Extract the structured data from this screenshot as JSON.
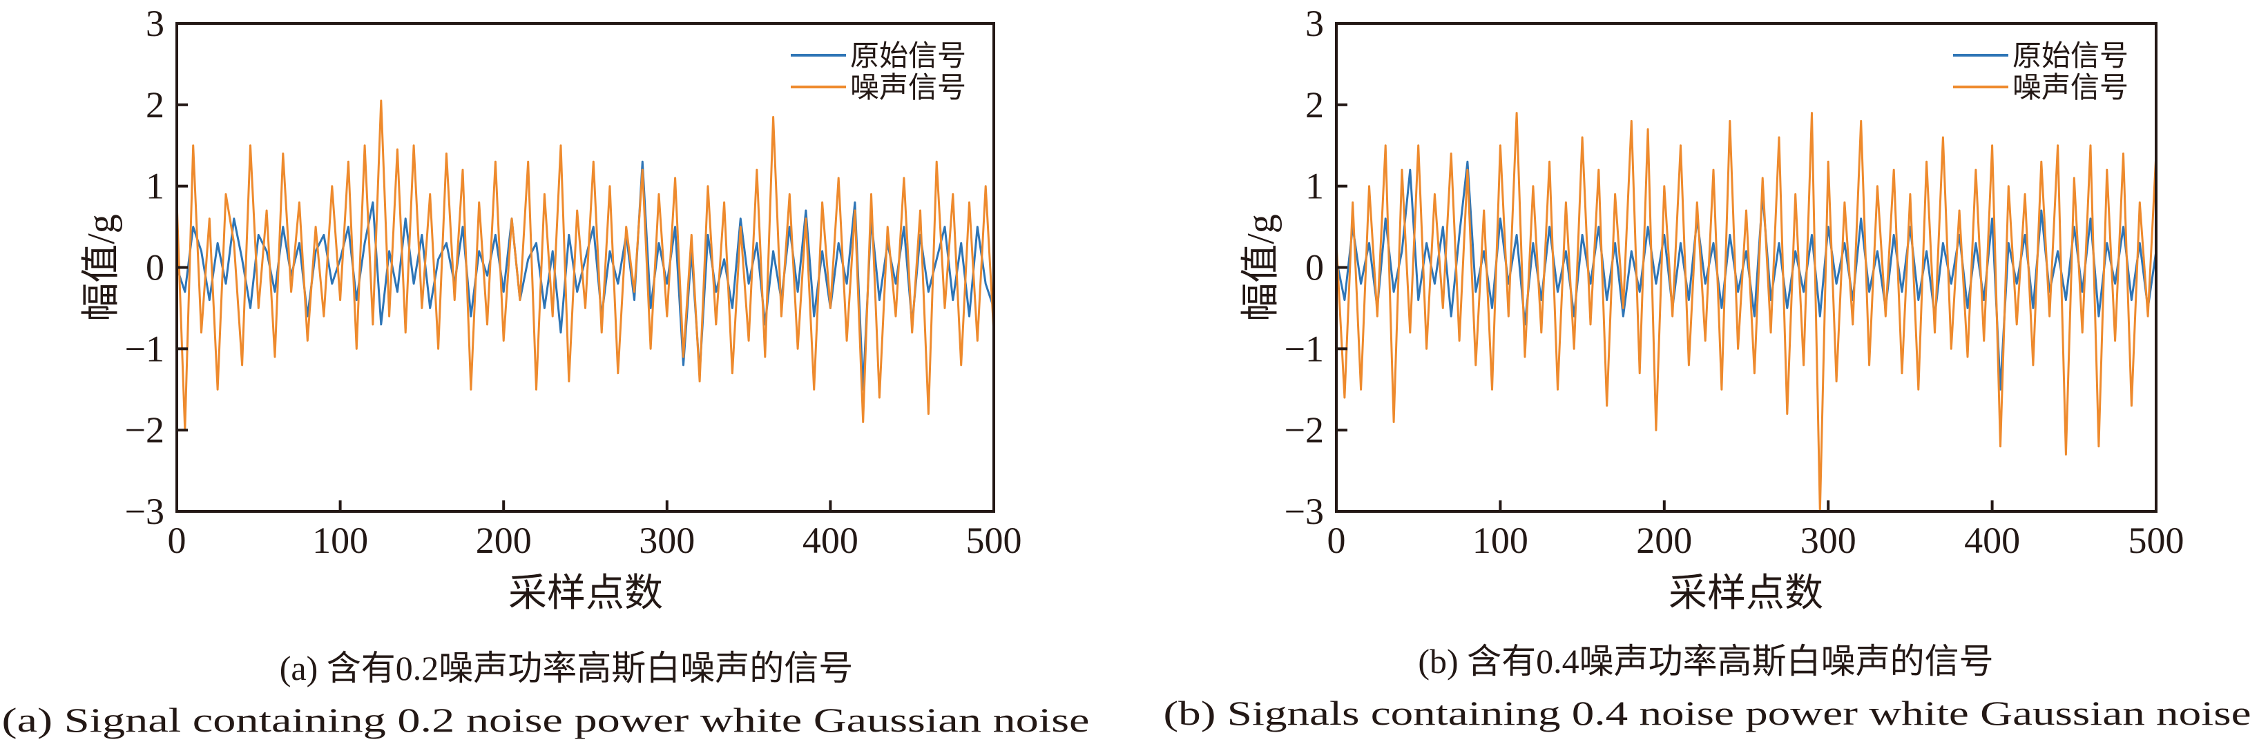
{
  "chart_data": [
    {
      "type": "line",
      "panel": "a",
      "title": "",
      "xlabel": "采样点数",
      "ylabel": "幅值/g",
      "xlim": [
        0,
        500
      ],
      "ylim": [
        -3,
        3
      ],
      "xticks": [
        "0",
        "100",
        "200",
        "300",
        "400",
        "500"
      ],
      "yticks": [
        "3",
        "2",
        "1",
        "0",
        "−1",
        "−2",
        "−3"
      ],
      "legend_position": "top-right",
      "caption_cn": "(a) 含有0.2噪声功率高斯白噪声的信号",
      "caption_en": "(a) Signal containing 0.2 noise power white Gaussian noise",
      "series": [
        {
          "name": "原始信号",
          "color": "#2e75b6",
          "values": [
            0,
            -0.3,
            0.5,
            0.2,
            -0.4,
            0.3,
            -0.2,
            0.6,
            0.1,
            -0.5,
            0.4,
            0.2,
            -0.3,
            0.5,
            -0.1,
            0.3,
            -0.6,
            0.2,
            0.4,
            -0.2,
            0.1,
            0.5,
            -0.4,
            0.3,
            0.8,
            -0.7,
            0.2,
            -0.3,
            0.6,
            -0.2,
            0.4,
            -0.5,
            0.1,
            0.3,
            -0.2,
            0.5,
            -0.6,
            0.2,
            -0.1,
            0.4,
            -0.3,
            0.6,
            -0.4,
            0.1,
            0.3,
            -0.5,
            0.2,
            -0.8,
            0.4,
            -0.3,
            0.1,
            0.5,
            -0.6,
            0.2,
            -0.2,
            0.4,
            -0.4,
            1.3,
            -0.5,
            0.3,
            -0.2,
            0.5,
            -1.2,
            0.2,
            -1.3,
            0.4,
            -0.3,
            0.1,
            -0.5,
            0.6,
            -0.2,
            0.3,
            -0.7,
            0.2,
            -0.4,
            0.5,
            -0.3,
            0.7,
            -0.6,
            0.2,
            -0.5,
            0.3,
            -0.2,
            0.8,
            -1.5,
            0.6,
            -0.4,
            0.3,
            -0.2,
            0.5,
            -0.7,
            0.4,
            -0.3,
            0.1,
            0.5,
            -0.4,
            0.3,
            -0.6,
            0.5,
            -0.2,
            -0.5
          ]
        },
        {
          "name": "噪声信号",
          "color": "#ee8a2d",
          "values": [
            0.8,
            -2.0,
            1.5,
            -0.8,
            0.6,
            -1.5,
            0.9,
            0.3,
            -1.2,
            1.5,
            -0.5,
            0.7,
            -1.1,
            1.4,
            -0.3,
            0.8,
            -0.9,
            0.5,
            -0.6,
            1.0,
            -0.4,
            1.3,
            -1.0,
            1.5,
            -0.7,
            2.05,
            -0.6,
            1.45,
            -0.8,
            1.5,
            -0.5,
            0.9,
            -1.0,
            1.4,
            -0.4,
            1.2,
            -1.5,
            0.8,
            -0.7,
            1.3,
            -0.9,
            0.6,
            -0.4,
            1.3,
            -1.5,
            0.9,
            -0.6,
            1.5,
            -1.4,
            0.7,
            -0.5,
            1.3,
            -0.8,
            1.0,
            -1.3,
            0.5,
            -0.3,
            1.2,
            -1.0,
            0.9,
            -0.6,
            1.1,
            -1.1,
            0.4,
            -1.4,
            1.0,
            -0.7,
            0.8,
            -1.3,
            0.5,
            -0.9,
            1.2,
            -1.1,
            1.85,
            -0.6,
            0.9,
            -1.0,
            0.6,
            -1.5,
            0.8,
            -0.5,
            1.1,
            -0.9,
            0.7,
            -1.9,
            0.9,
            -1.6,
            0.5,
            -0.6,
            1.1,
            -0.8,
            0.7,
            -1.8,
            1.3,
            -0.5,
            0.9,
            -1.2,
            0.8,
            -0.9,
            1.0,
            -0.8
          ]
        }
      ]
    },
    {
      "type": "line",
      "panel": "b",
      "title": "",
      "xlabel": "采样点数",
      "ylabel": "幅值/g",
      "xlim": [
        0,
        500
      ],
      "ylim": [
        -3,
        3
      ],
      "xticks": [
        "0",
        "100",
        "200",
        "300",
        "400",
        "500"
      ],
      "yticks": [
        "3",
        "2",
        "1",
        "0",
        "−1",
        "−2",
        "−3"
      ],
      "legend_position": "top-right",
      "caption_cn": "(b) 含有0.4噪声功率高斯白噪声的信号",
      "caption_en": "(b) Signals containing 0.4 noise power white Gaussian noise",
      "series": [
        {
          "name": "原始信号",
          "color": "#2e75b6",
          "values": [
            0.1,
            -0.4,
            0.5,
            -0.2,
            0.3,
            -0.5,
            0.6,
            -0.3,
            0.2,
            1.2,
            -0.4,
            0.3,
            -0.2,
            0.5,
            -0.6,
            0.4,
            1.3,
            -0.3,
            0.2,
            -0.5,
            0.6,
            -0.2,
            0.4,
            -0.7,
            0.3,
            -0.4,
            0.5,
            -0.3,
            0.2,
            -0.6,
            0.4,
            -0.2,
            0.5,
            -0.4,
            0.3,
            -0.6,
            0.2,
            -0.3,
            0.5,
            -0.2,
            0.4,
            -0.5,
            0.3,
            -0.4,
            0.6,
            -0.2,
            0.3,
            -0.5,
            0.4,
            -0.3,
            0.2,
            -0.6,
            0.9,
            -0.4,
            0.3,
            -0.5,
            0.2,
            -0.3,
            0.4,
            -0.6,
            0.5,
            -0.2,
            0.3,
            -0.4,
            0.6,
            -0.3,
            0.2,
            -0.5,
            0.4,
            -0.3,
            0.5,
            -0.4,
            0.2,
            -0.6,
            0.3,
            -0.2,
            0.4,
            -0.5,
            0.3,
            -0.4,
            0.6,
            -1.5,
            0.3,
            -0.2,
            0.4,
            -0.5,
            0.7,
            -0.3,
            0.2,
            -0.4,
            0.5,
            -0.3,
            0.6,
            -0.6,
            0.3,
            -0.2,
            0.5,
            -0.4,
            0.3,
            -0.5,
            0.2
          ]
        },
        {
          "name": "噪声信号",
          "color": "#ee8a2d",
          "values": [
            0.3,
            -1.6,
            0.8,
            -1.5,
            1.0,
            -0.6,
            1.5,
            -1.9,
            1.2,
            -0.8,
            1.5,
            -1.0,
            0.9,
            -0.5,
            1.4,
            -0.9,
            1.2,
            -1.2,
            0.7,
            -1.5,
            1.5,
            -0.6,
            1.9,
            -1.1,
            1.0,
            -0.8,
            1.3,
            -1.5,
            0.8,
            -1.0,
            1.6,
            -0.7,
            1.2,
            -1.7,
            0.9,
            -0.5,
            1.8,
            -1.3,
            1.7,
            -2.0,
            1.0,
            -0.6,
            1.5,
            -1.2,
            0.8,
            -0.9,
            1.2,
            -1.5,
            1.8,
            -1.0,
            0.7,
            -1.3,
            1.1,
            -0.8,
            1.6,
            -1.8,
            0.9,
            -1.2,
            1.9,
            -3.0,
            1.3,
            -1.4,
            0.8,
            -0.7,
            1.8,
            -1.2,
            1.0,
            -0.6,
            1.2,
            -1.3,
            0.9,
            -1.5,
            1.3,
            -0.8,
            1.6,
            -1.0,
            0.7,
            -1.1,
            1.2,
            -0.9,
            1.5,
            -2.2,
            1.0,
            -0.7,
            0.9,
            -1.2,
            1.3,
            -0.6,
            1.5,
            -2.3,
            1.1,
            -0.8,
            1.5,
            -2.2,
            1.2,
            -0.9,
            1.4,
            -1.7,
            0.8,
            -0.6,
            1.4
          ]
        }
      ]
    }
  ]
}
